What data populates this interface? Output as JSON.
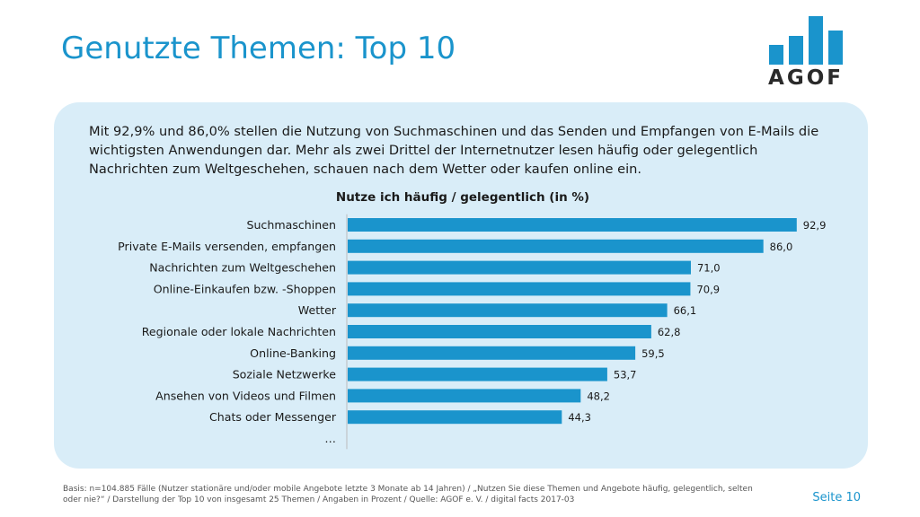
{
  "slide": {
    "title": "Genutzte Themen: Top 10",
    "intro": "Mit 92,9% und 86,0% stellen die Nutzung von Suchmaschinen und das Senden und Empfangen von E-Mails die wichtigsten Anwendungen dar. Mehr als zwei Drittel der Internetnutzer lesen häufig oder gelegentlich Nachrichten zum Weltgeschehen, schauen nach dem Wetter oder kaufen online ein.",
    "footnote": "Basis: n=104.885 Fälle (Nutzer stationäre und/oder mobile Angebote letzte 3 Monate ab 14 Jahren) / „Nutzen Sie diese Themen und Angebote häufig, gelegentlich, selten oder nie?“ / Darstellung der Top 10 von insgesamt 25 Themen / Angaben in Prozent / Quelle: AGOF e. V. / digital facts 2017-03",
    "page_number": "Seite 10"
  },
  "logo": {
    "text": "AGOF",
    "color": "#1a94cc"
  },
  "chart_data": {
    "type": "bar",
    "orientation": "horizontal",
    "title": "Nutze ich häufig / gelegentlich (in %)",
    "categories": [
      "Suchmaschinen",
      "Private E-Mails versenden, empfangen",
      "Nachrichten zum Weltgeschehen",
      "Online-Einkaufen bzw. -Shoppen",
      "Wetter",
      "Regionale oder lokale Nachrichten",
      "Online-Banking",
      "Soziale Netzwerke",
      "Ansehen von Videos und Filmen",
      "Chats oder Messenger",
      "…"
    ],
    "values": [
      92.9,
      86.0,
      71.0,
      70.9,
      66.1,
      62.8,
      59.5,
      53.7,
      48.2,
      44.3,
      null
    ],
    "value_labels": [
      "92,9",
      "86,0",
      "71,0",
      "70,9",
      "66,1",
      "62,8",
      "59,5",
      "53,7",
      "48,2",
      "44,3",
      ""
    ],
    "xlim": [
      0,
      100
    ],
    "bar_color": "#1a94cc",
    "grid": false,
    "legend": "none"
  }
}
